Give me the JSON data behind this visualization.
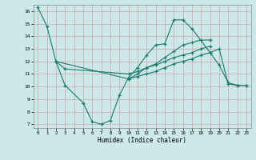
{
  "xlabel": "Humidex (Indice chaleur)",
  "bg_color": "#cce8e8",
  "grid_color": "#b8d8d8",
  "line_color": "#1a7a6e",
  "xlim": [
    -0.5,
    23.5
  ],
  "ylim": [
    6.7,
    16.5
  ],
  "yticks": [
    7,
    8,
    9,
    10,
    11,
    12,
    13,
    14,
    15,
    16
  ],
  "xticks": [
    0,
    1,
    2,
    3,
    4,
    5,
    6,
    7,
    8,
    9,
    10,
    11,
    12,
    13,
    14,
    15,
    16,
    17,
    18,
    19,
    20,
    21,
    22,
    23
  ],
  "series": [
    {
      "x": [
        0,
        1,
        2,
        3,
        5,
        6,
        7,
        8,
        9,
        10,
        11,
        12,
        13,
        14,
        15,
        16,
        17,
        19,
        20,
        21,
        22,
        23
      ],
      "y": [
        16.3,
        14.8,
        12.0,
        10.1,
        8.7,
        7.2,
        7.0,
        7.3,
        9.3,
        10.7,
        11.5,
        12.5,
        13.3,
        13.4,
        15.3,
        15.3,
        14.6,
        12.7,
        11.7,
        10.3,
        10.1,
        10.1
      ]
    },
    {
      "x": [
        2,
        3,
        10,
        11,
        12,
        13,
        14,
        15,
        16,
        17,
        18,
        19
      ],
      "y": [
        12.0,
        11.4,
        11.0,
        11.2,
        11.5,
        11.7,
        12.0,
        12.3,
        12.5,
        12.7,
        13.0,
        13.2
      ]
    },
    {
      "x": [
        2,
        10,
        11,
        12,
        13,
        14,
        15,
        16,
        17,
        18,
        19
      ],
      "y": [
        12.0,
        10.6,
        11.0,
        11.5,
        11.8,
        12.3,
        12.8,
        13.3,
        13.5,
        13.7,
        13.7
      ]
    },
    {
      "x": [
        10,
        11,
        12,
        13,
        14,
        15,
        16,
        17,
        18,
        19,
        20,
        21,
        22,
        23
      ],
      "y": [
        10.6,
        10.8,
        11.0,
        11.2,
        11.5,
        11.8,
        12.0,
        12.2,
        12.5,
        12.7,
        13.0,
        10.2,
        10.1,
        10.1
      ]
    }
  ]
}
